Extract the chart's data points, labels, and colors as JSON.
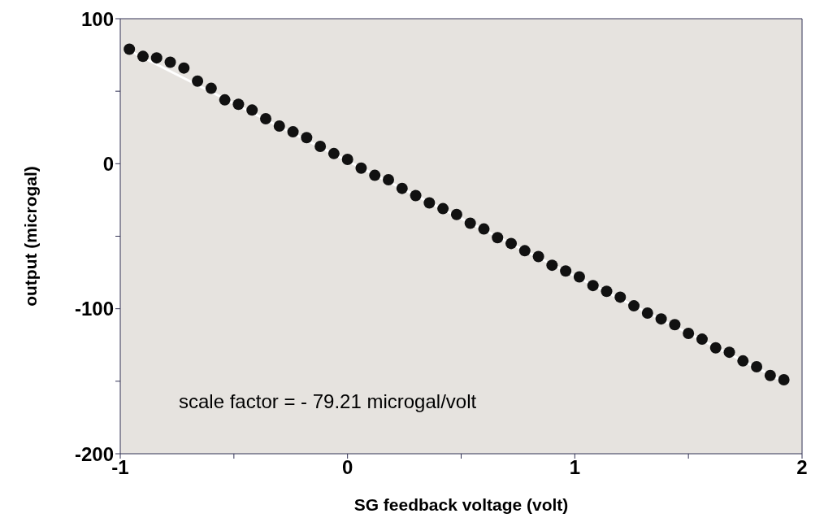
{
  "chart_data": {
    "type": "scatter",
    "xlabel": "SG feedback voltage (volt)",
    "ylabel": "output (microgal)",
    "annotations": [
      "scale factor = - 79.21 microgal/volt"
    ],
    "xlim": [
      -1,
      2
    ],
    "ylim": [
      -200,
      100
    ],
    "xticks": [
      -1,
      {
        "value": -0.5,
        "label": null
      },
      0,
      {
        "value": 0.5,
        "label": null
      },
      1,
      {
        "value": 1.5,
        "label": null
      },
      2
    ],
    "yticks": [
      -200,
      {
        "value": -150,
        "label": null
      },
      -100,
      {
        "value": -50,
        "label": null
      },
      0,
      {
        "value": 50,
        "label": null
      },
      100
    ],
    "grid": false,
    "series": [
      {
        "marker": "circle",
        "color": "#111111",
        "x": [
          -0.96,
          -0.9,
          -0.84,
          -0.78,
          -0.72,
          -0.66,
          -0.6,
          -0.54,
          -0.48,
          -0.42,
          -0.36,
          -0.3,
          -0.24,
          -0.18,
          -0.12,
          -0.06,
          0,
          0.06,
          0.12,
          0.18,
          0.24,
          0.3,
          0.36,
          0.42,
          0.48,
          0.54,
          0.6,
          0.66,
          0.72,
          0.78,
          0.84,
          0.9,
          0.96,
          1.02,
          1.08,
          1.14,
          1.2,
          1.26,
          1.32,
          1.38,
          1.44,
          1.5,
          1.56,
          1.62,
          1.68,
          1.74,
          1.8,
          1.86,
          1.92
        ],
        "values": [
          79,
          74,
          73,
          70,
          66,
          57,
          52,
          44,
          41,
          37,
          31,
          26,
          22,
          18,
          12,
          7,
          3,
          -3,
          -8,
          -11,
          -17,
          -22,
          -27,
          -31,
          -35,
          -41,
          -45,
          -51,
          -55,
          -60,
          -64,
          -70,
          -74,
          -78,
          -84,
          -88,
          -92,
          -98,
          -103,
          -107,
          -111,
          -117,
          -121,
          -127,
          -130,
          -136,
          -140,
          -146,
          -149
        ]
      },
      {
        "type": "line",
        "color": "#ffffff",
        "line_style": "solid",
        "x": [
          -0.96,
          1.93
        ],
        "values": [
          78,
          -151
        ]
      }
    ]
  }
}
